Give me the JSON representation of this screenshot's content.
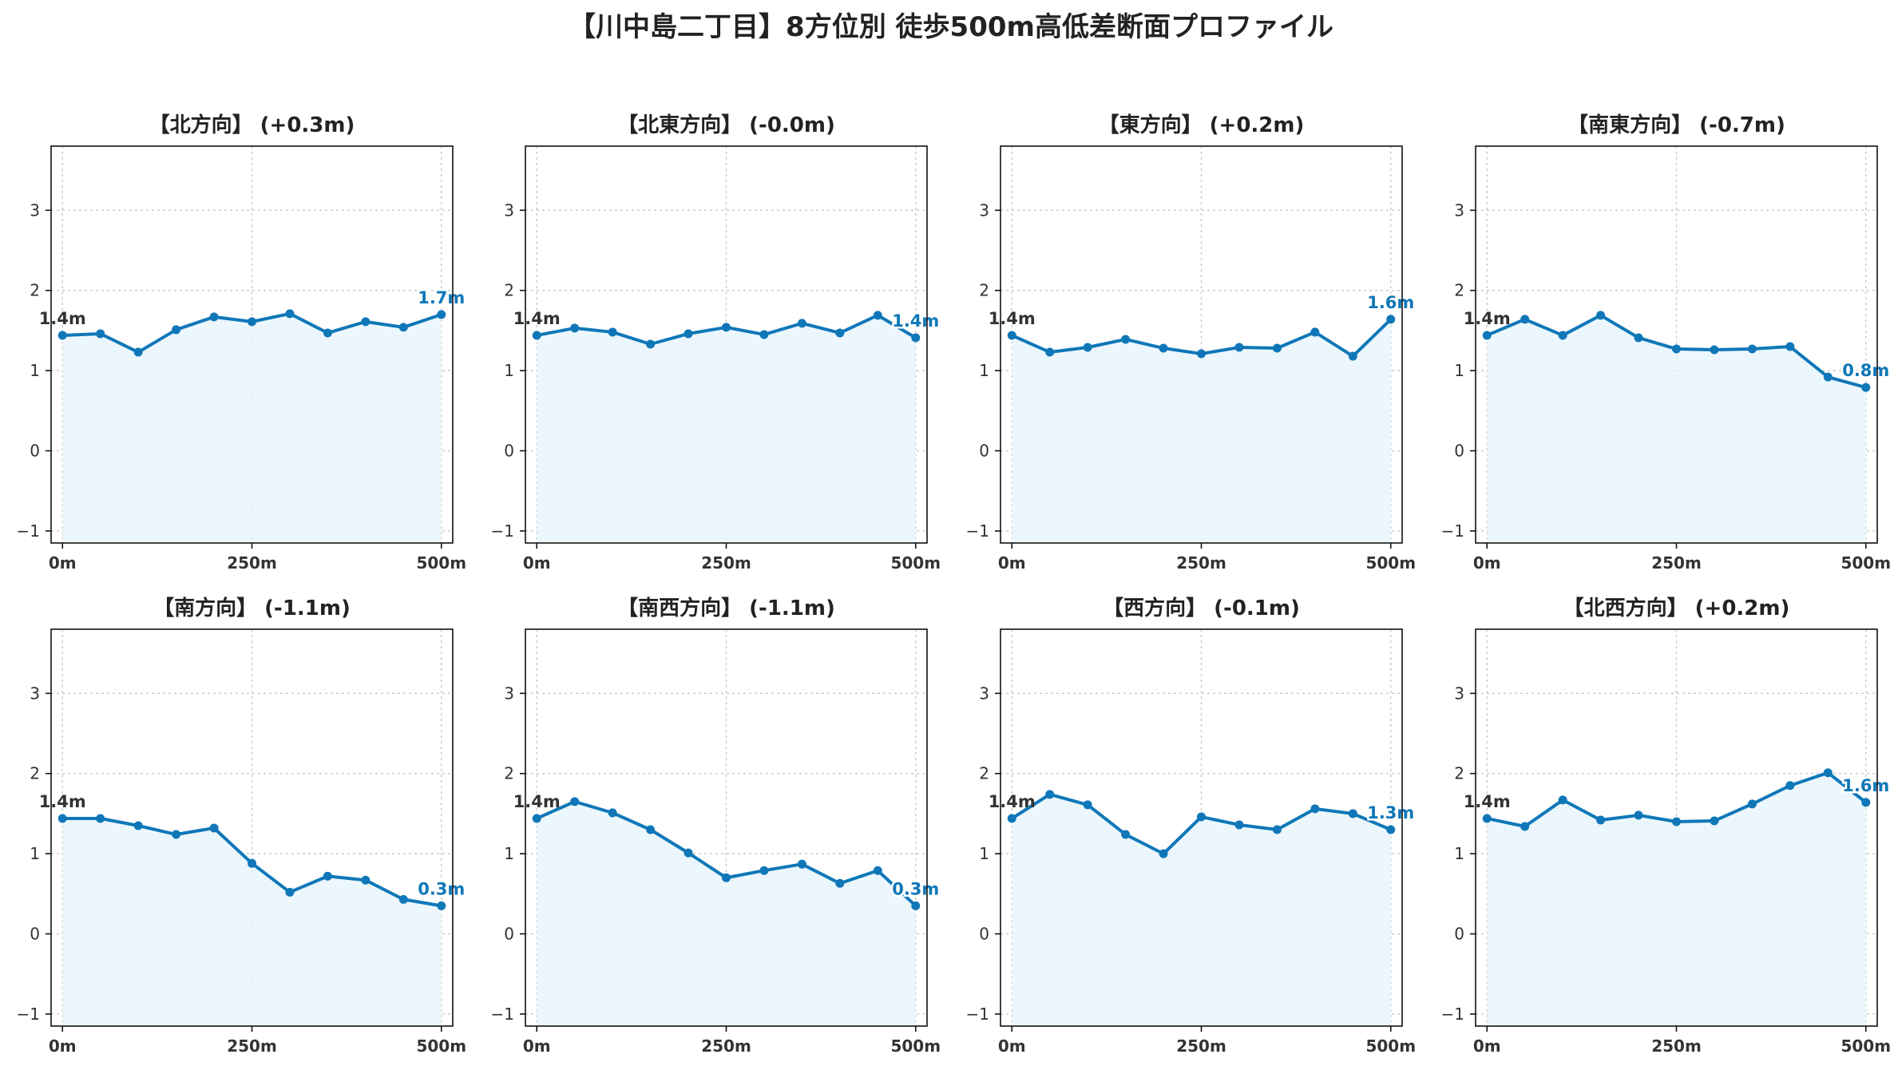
{
  "title": "【川中島二丁目】8方位別 徒歩500m高低差断面プロファイル",
  "colors": {
    "line": "#0f77b8",
    "fill": "#e8f6fc",
    "start_label": "#333333",
    "end_label": "#0f77b8"
  },
  "chart_data": [
    {
      "type": "line",
      "title": "【北方向】 (+0.3m)",
      "x": [
        0,
        50,
        100,
        150,
        200,
        250,
        300,
        350,
        400,
        450,
        500
      ],
      "y": [
        1.44,
        1.46,
        1.23,
        1.51,
        1.67,
        1.61,
        1.71,
        1.47,
        1.61,
        1.54,
        1.7
      ],
      "start_label": "1.4m",
      "end_label": "1.7m",
      "xticks": [
        "0m",
        "250m",
        "500m"
      ],
      "yticks": [
        "−1",
        "0",
        "1",
        "2",
        "3"
      ],
      "xlim": [
        -15,
        515
      ],
      "ylim": [
        -1.15,
        3.8
      ],
      "grid": true
    },
    {
      "type": "line",
      "title": "【北東方向】 (-0.0m)",
      "x": [
        0,
        50,
        100,
        150,
        200,
        250,
        300,
        350,
        400,
        450,
        500
      ],
      "y": [
        1.44,
        1.53,
        1.48,
        1.33,
        1.46,
        1.54,
        1.45,
        1.59,
        1.47,
        1.69,
        1.41
      ],
      "start_label": "1.4m",
      "end_label": "1.4m",
      "xticks": [
        "0m",
        "250m",
        "500m"
      ],
      "yticks": [
        "−1",
        "0",
        "1",
        "2",
        "3"
      ],
      "xlim": [
        -15,
        515
      ],
      "ylim": [
        -1.15,
        3.8
      ],
      "grid": true
    },
    {
      "type": "line",
      "title": "【東方向】 (+0.2m)",
      "x": [
        0,
        50,
        100,
        150,
        200,
        250,
        300,
        350,
        400,
        450,
        500
      ],
      "y": [
        1.44,
        1.23,
        1.29,
        1.39,
        1.28,
        1.21,
        1.29,
        1.28,
        1.48,
        1.18,
        1.64
      ],
      "start_label": "1.4m",
      "end_label": "1.6m",
      "xticks": [
        "0m",
        "250m",
        "500m"
      ],
      "yticks": [
        "−1",
        "0",
        "1",
        "2",
        "3"
      ],
      "xlim": [
        -15,
        515
      ],
      "ylim": [
        -1.15,
        3.8
      ],
      "grid": true
    },
    {
      "type": "line",
      "title": "【南東方向】 (-0.7m)",
      "x": [
        0,
        50,
        100,
        150,
        200,
        250,
        300,
        350,
        400,
        450,
        500
      ],
      "y": [
        1.44,
        1.64,
        1.44,
        1.69,
        1.41,
        1.27,
        1.26,
        1.27,
        1.3,
        0.92,
        0.79
      ],
      "start_label": "1.4m",
      "end_label": "0.8m",
      "xticks": [
        "0m",
        "250m",
        "500m"
      ],
      "yticks": [
        "−1",
        "0",
        "1",
        "2",
        "3"
      ],
      "xlim": [
        -15,
        515
      ],
      "ylim": [
        -1.15,
        3.8
      ],
      "grid": true
    },
    {
      "type": "line",
      "title": "【南方向】 (-1.1m)",
      "x": [
        0,
        50,
        100,
        150,
        200,
        250,
        300,
        350,
        400,
        450,
        500
      ],
      "y": [
        1.44,
        1.44,
        1.35,
        1.24,
        1.32,
        0.88,
        0.52,
        0.72,
        0.67,
        0.43,
        0.35
      ],
      "start_label": "1.4m",
      "end_label": "0.3m",
      "xticks": [
        "0m",
        "250m",
        "500m"
      ],
      "yticks": [
        "−1",
        "0",
        "1",
        "2",
        "3"
      ],
      "xlim": [
        -15,
        515
      ],
      "ylim": [
        -1.15,
        3.8
      ],
      "grid": true
    },
    {
      "type": "line",
      "title": "【南西方向】 (-1.1m)",
      "x": [
        0,
        50,
        100,
        150,
        200,
        250,
        300,
        350,
        400,
        450,
        500
      ],
      "y": [
        1.44,
        1.65,
        1.51,
        1.3,
        1.01,
        0.7,
        0.79,
        0.87,
        0.63,
        0.79,
        0.35
      ],
      "start_label": "1.4m",
      "end_label": "0.3m",
      "xticks": [
        "0m",
        "250m",
        "500m"
      ],
      "yticks": [
        "−1",
        "0",
        "1",
        "2",
        "3"
      ],
      "xlim": [
        -15,
        515
      ],
      "ylim": [
        -1.15,
        3.8
      ],
      "grid": true
    },
    {
      "type": "line",
      "title": "【西方向】 (-0.1m)",
      "x": [
        0,
        50,
        100,
        150,
        200,
        250,
        300,
        350,
        400,
        450,
        500
      ],
      "y": [
        1.44,
        1.74,
        1.61,
        1.24,
        1.0,
        1.46,
        1.36,
        1.3,
        1.56,
        1.5,
        1.3
      ],
      "start_label": "1.4m",
      "end_label": "1.3m",
      "xticks": [
        "0m",
        "250m",
        "500m"
      ],
      "yticks": [
        "−1",
        "0",
        "1",
        "2",
        "3"
      ],
      "xlim": [
        -15,
        515
      ],
      "ylim": [
        -1.15,
        3.8
      ],
      "grid": true
    },
    {
      "type": "line",
      "title": "【北西方向】 (+0.2m)",
      "x": [
        0,
        50,
        100,
        150,
        200,
        250,
        300,
        350,
        400,
        450,
        500
      ],
      "y": [
        1.44,
        1.34,
        1.67,
        1.42,
        1.48,
        1.4,
        1.41,
        1.62,
        1.85,
        2.01,
        1.64
      ],
      "start_label": "1.4m",
      "end_label": "1.6m",
      "xticks": [
        "0m",
        "250m",
        "500m"
      ],
      "yticks": [
        "−1",
        "0",
        "1",
        "2",
        "3"
      ],
      "xlim": [
        -15,
        515
      ],
      "ylim": [
        -1.15,
        3.8
      ],
      "grid": true
    }
  ]
}
